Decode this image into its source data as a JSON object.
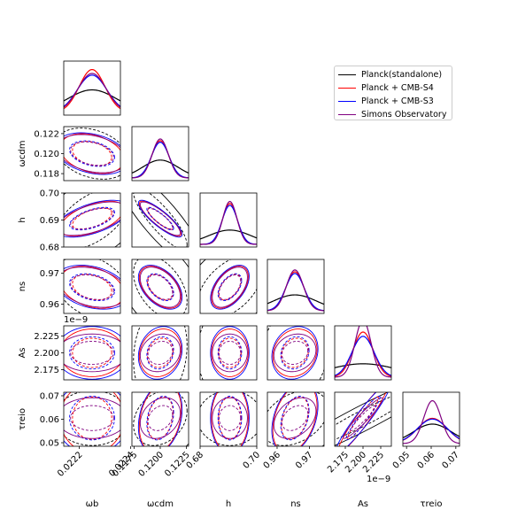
{
  "chart_data": {
    "type": "corner",
    "parameters": [
      {
        "key": "wb",
        "label": "ωb",
        "center": 0.02225,
        "sigma": 5e-05,
        "ticks": [
          0.0222,
          0.0224
        ],
        "tick_labels": [
          "0.0222",
          "0.0224"
        ],
        "range": [
          0.02214,
          0.02236
        ]
      },
      {
        "key": "wcdm",
        "label": "ωcdm",
        "center": 0.12,
        "sigma": 0.0007,
        "ticks": [
          0.118,
          0.12,
          0.122
        ],
        "tick_labels": [
          "0.118",
          "0.120",
          "0.122"
        ],
        "ticks_x": [
          0.1175,
          0.12,
          0.1225
        ],
        "tick_labels_x": [
          "0.1175",
          "0.1200",
          "0.1225"
        ],
        "range": [
          0.1173,
          0.1227
        ]
      },
      {
        "key": "h",
        "label": "h",
        "center": 0.6905,
        "sigma": 0.0025,
        "ticks": [
          0.68,
          0.69,
          0.7
        ],
        "tick_labels": [
          "0.68",
          "0.69",
          "0.70"
        ],
        "ticks_x": [
          0.68,
          0.7
        ],
        "tick_labels_x": [
          "0.68",
          "0.70"
        ],
        "range": [
          0.68,
          0.7
        ]
      },
      {
        "key": "ns",
        "label": "ns",
        "center": 0.9655,
        "sigma": 0.0025,
        "ticks": [
          0.96,
          0.97
        ],
        "tick_labels": [
          "0.96",
          "0.97"
        ],
        "range": [
          0.957,
          0.9745
        ]
      },
      {
        "key": "As",
        "label": "As",
        "center": 2.2,
        "sigma": 0.015,
        "ticks": [
          2.175,
          2.2,
          2.225
        ],
        "tick_labels": [
          "2.175",
          "2.200",
          "2.225"
        ],
        "range": [
          2.16,
          2.24
        ],
        "offset_label": "1e−9"
      },
      {
        "key": "tau",
        "label": "τreio",
        "center": 0.0605,
        "sigma": 0.0035,
        "ticks": [
          0.05,
          0.06,
          0.07
        ],
        "tick_labels": [
          "0.05",
          "0.06",
          "0.07"
        ],
        "range": [
          0.0485,
          0.0715
        ]
      }
    ],
    "series": [
      {
        "name": "Planck(standalone)",
        "color": "#000000",
        "sigma_scale": [
          1.9,
          2.4,
          3.0,
          2.7,
          3.2,
          2.2
        ],
        "solid": true
      },
      {
        "name": "Planck + CMB-S4",
        "color": "#ff0000",
        "sigma_scale": [
          1.0,
          1.15,
          1.05,
          1.1,
          0.95,
          1.7
        ],
        "solid": true
      },
      {
        "name": "Planck + CMB-S3",
        "color": "#0000ff",
        "sigma_scale": [
          1.15,
          1.2,
          1.1,
          1.15,
          1.05,
          1.75
        ],
        "solid": true
      },
      {
        "name": "Simons Observatory",
        "color": "#800080",
        "sigma_scale": [
          1.1,
          1.1,
          1.0,
          1.05,
          0.75,
          1.0
        ],
        "solid": true
      }
    ],
    "correlation": {
      "wb-wcdm": -0.3,
      "wb-h": 0.55,
      "wb-ns": -0.3,
      "wb-As": 0.0,
      "wb-tau": 0.0,
      "wcdm-h": -0.85,
      "wcdm-ns": -0.45,
      "wcdm-As": 0.15,
      "wcdm-tau": 0.25,
      "h-ns": 0.5,
      "h-As": 0.0,
      "h-tau": 0.0,
      "ns-As": 0.15,
      "ns-tau": 0.35,
      "As-tau": 0.95
    },
    "legend_position": "upper-right"
  }
}
